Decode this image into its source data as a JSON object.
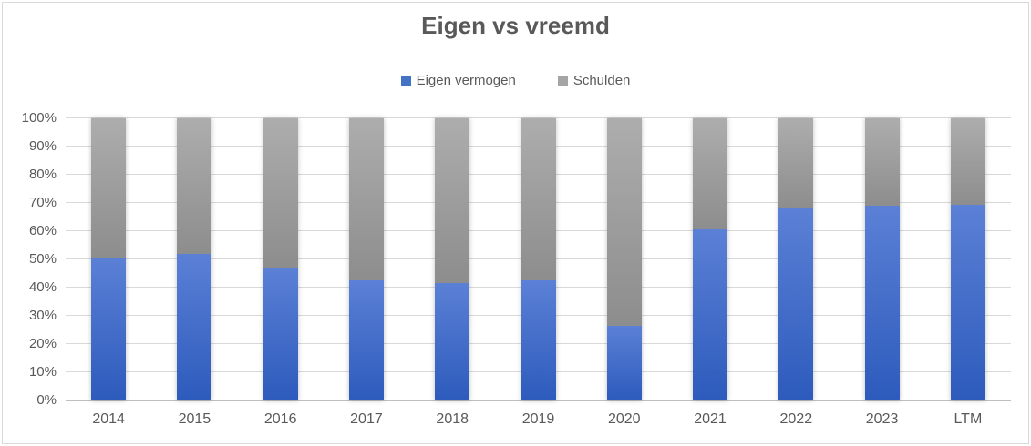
{
  "page": {
    "background_color": "#FFFFFF",
    "border_color": "#D9D9D9"
  },
  "chart_data": {
    "type": "bar",
    "stacked": true,
    "percent_stacked": true,
    "title": "Eigen vs vreemd",
    "title_color": "#595959",
    "categories": [
      "2014",
      "2015",
      "2016",
      "2017",
      "2018",
      "2019",
      "2020",
      "2021",
      "2022",
      "2023",
      "LTM"
    ],
    "series": [
      {
        "name": "Eigen vermogen",
        "color": "#4472C4",
        "gradient_top": "#5B80D6",
        "gradient_bottom": "#2D5BBC",
        "values": [
          50.5,
          52,
          47,
          42.5,
          41.5,
          42.5,
          26.5,
          60.5,
          68,
          69,
          69.5
        ]
      },
      {
        "name": "Schulden",
        "color": "#A5A5A5",
        "gradient_top": "#ADADAD",
        "gradient_bottom": "#8D8D8D",
        "values": [
          49.5,
          48,
          53,
          57.5,
          58.5,
          57.5,
          73.5,
          39.5,
          32,
          31,
          30.5
        ]
      }
    ],
    "y_ticks": [
      "0%",
      "10%",
      "20%",
      "30%",
      "40%",
      "50%",
      "60%",
      "70%",
      "80%",
      "90%",
      "100%"
    ],
    "ylim": [
      0,
      100
    ],
    "grid": true,
    "gridline_color": "#D9D9D9",
    "axis_label_color": "#595959",
    "legend_position": "top"
  }
}
